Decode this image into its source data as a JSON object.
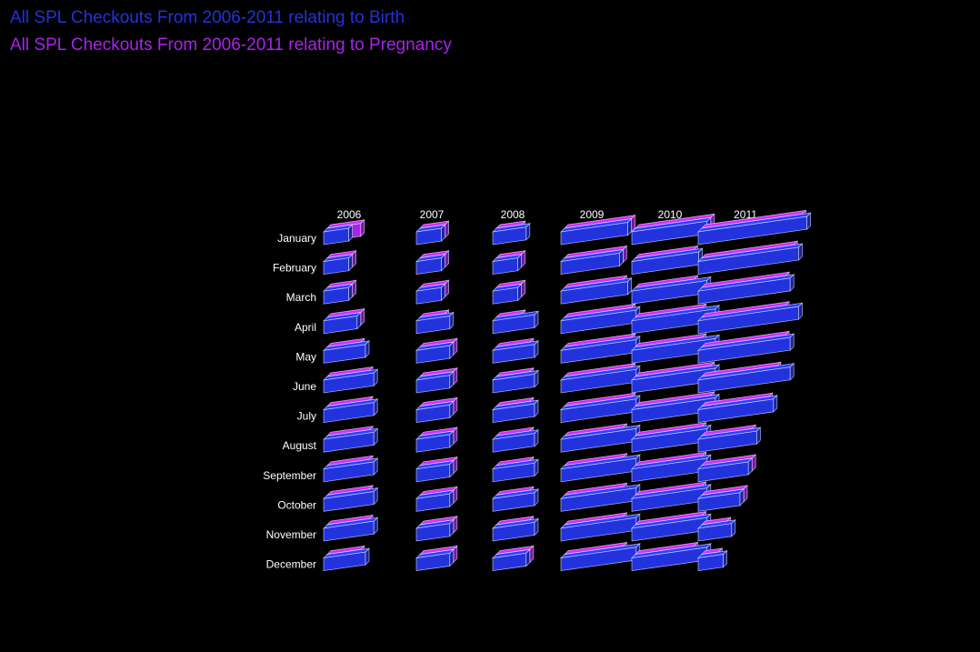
{
  "chart_data": {
    "type": "bar",
    "subtype": "3d-bar-grid",
    "series": [
      {
        "name": "All SPL Checkouts From 2006-2011 relating to Birth",
        "color": "#2233dd",
        "values": [
          [
            3,
            3,
            4,
            8,
            9,
            13
          ],
          [
            3,
            3,
            3,
            7,
            8,
            12
          ],
          [
            3,
            3,
            3,
            8,
            9,
            11
          ],
          [
            4,
            4,
            5,
            9,
            10,
            12
          ],
          [
            5,
            4,
            5,
            9,
            10,
            11
          ],
          [
            6,
            4,
            5,
            9,
            10,
            11
          ],
          [
            6,
            4,
            5,
            9,
            10,
            9
          ],
          [
            6,
            4,
            5,
            9,
            9,
            7
          ],
          [
            6,
            4,
            5,
            9,
            9,
            6
          ],
          [
            6,
            4,
            5,
            9,
            9,
            5
          ],
          [
            6,
            4,
            5,
            9,
            9,
            4
          ],
          [
            5,
            4,
            4,
            9,
            9,
            3
          ]
        ]
      },
      {
        "name": "All SPL Checkouts From 2006-2011 relating to Pregnancy",
        "color": "#aa22ee",
        "values": [
          [
            4,
            3,
            3,
            8,
            9,
            12
          ],
          [
            3,
            3,
            3,
            7,
            7,
            11
          ],
          [
            3,
            3,
            3,
            7,
            7,
            10
          ],
          [
            4,
            3,
            3,
            8,
            8,
            10
          ],
          [
            4,
            4,
            4,
            8,
            8,
            10
          ],
          [
            5,
            4,
            4,
            8,
            9,
            9
          ],
          [
            5,
            4,
            4,
            8,
            9,
            8
          ],
          [
            5,
            4,
            4,
            7,
            8,
            6
          ],
          [
            5,
            4,
            4,
            7,
            8,
            6
          ],
          [
            5,
            4,
            4,
            7,
            8,
            5
          ],
          [
            5,
            4,
            4,
            7,
            8,
            3
          ],
          [
            4,
            4,
            4,
            7,
            7,
            2
          ]
        ]
      }
    ],
    "years": [
      "2006",
      "2007",
      "2008",
      "2009",
      "2010",
      "2011"
    ],
    "months": [
      "January",
      "February",
      "March",
      "April",
      "May",
      "June",
      "July",
      "August",
      "September",
      "October",
      "November",
      "December"
    ],
    "grid": false,
    "legend": "top-left"
  }
}
